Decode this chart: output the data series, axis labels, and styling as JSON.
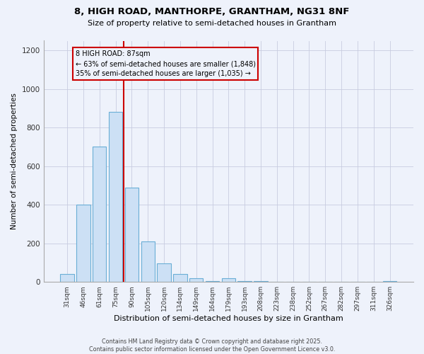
{
  "title": "8, HIGH ROAD, MANTHORPE, GRANTHAM, NG31 8NF",
  "subtitle": "Size of property relative to semi-detached houses in Grantham",
  "xlabel": "Distribution of semi-detached houses by size in Grantham",
  "ylabel": "Number of semi-detached properties",
  "categories": [
    "31sqm",
    "46sqm",
    "61sqm",
    "75sqm",
    "90sqm",
    "105sqm",
    "120sqm",
    "134sqm",
    "149sqm",
    "164sqm",
    "179sqm",
    "193sqm",
    "208sqm",
    "223sqm",
    "238sqm",
    "252sqm",
    "267sqm",
    "282sqm",
    "297sqm",
    "311sqm",
    "326sqm"
  ],
  "values": [
    40,
    400,
    700,
    880,
    490,
    210,
    95,
    40,
    20,
    5,
    20,
    5,
    5,
    0,
    0,
    0,
    0,
    0,
    0,
    0,
    5
  ],
  "bar_color": "#cce0f5",
  "bar_edge_color": "#6aaed6",
  "highlight_index": 4,
  "highlight_line_color": "#cc0000",
  "annotation_title": "8 HIGH ROAD: 87sqm",
  "annotation_line1": "← 63% of semi-detached houses are smaller (1,848)",
  "annotation_line2": "35% of semi-detached houses are larger (1,035) →",
  "annotation_box_edge": "#cc0000",
  "ylim": [
    0,
    1250
  ],
  "yticks": [
    0,
    200,
    400,
    600,
    800,
    1000,
    1200
  ],
  "footer1": "Contains HM Land Registry data © Crown copyright and database right 2025.",
  "footer2": "Contains public sector information licensed under the Open Government Licence v3.0.",
  "bg_color": "#eef2fb",
  "plot_bg_color": "#eef2fb",
  "grid_color": "#c8cce0"
}
